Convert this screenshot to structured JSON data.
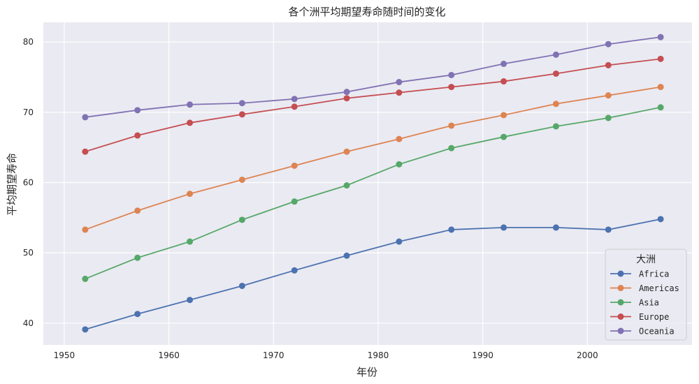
{
  "chart_data": {
    "type": "line",
    "title": "各个洲平均期望寿命随时间的变化",
    "xlabel": "年份",
    "ylabel": "平均期望寿命",
    "xlim": [
      1948,
      2010
    ],
    "ylim": [
      36.9,
      82.8
    ],
    "xticks": [
      1950,
      1960,
      1970,
      1980,
      1990,
      2000
    ],
    "yticks": [
      40,
      50,
      60,
      70,
      80
    ],
    "grid": true,
    "legend_title": "大洲",
    "legend_position": "lower-right",
    "x": [
      1952,
      1957,
      1962,
      1967,
      1972,
      1977,
      1982,
      1987,
      1992,
      1997,
      2002,
      2007
    ],
    "series": [
      {
        "name": "Africa",
        "color": "#4c72b0",
        "values": [
          39.1,
          41.3,
          43.3,
          45.3,
          47.5,
          49.6,
          51.6,
          53.3,
          53.6,
          53.6,
          53.3,
          54.8
        ]
      },
      {
        "name": "Americas",
        "color": "#dd8452",
        "values": [
          53.3,
          56.0,
          58.4,
          60.4,
          62.4,
          64.4,
          66.2,
          68.1,
          69.6,
          71.2,
          72.4,
          73.6
        ]
      },
      {
        "name": "Asia",
        "color": "#55a868",
        "values": [
          46.3,
          49.3,
          51.6,
          54.7,
          57.3,
          59.6,
          62.6,
          64.9,
          66.5,
          68.0,
          69.2,
          70.7
        ]
      },
      {
        "name": "Europe",
        "color": "#c44e52",
        "values": [
          64.4,
          66.7,
          68.5,
          69.7,
          70.8,
          72.0,
          72.8,
          73.6,
          74.4,
          75.5,
          76.7,
          77.6
        ]
      },
      {
        "name": "Oceania",
        "color": "#8172b3",
        "values": [
          69.3,
          70.3,
          71.1,
          71.3,
          71.9,
          72.9,
          74.3,
          75.3,
          76.9,
          78.2,
          79.7,
          80.7
        ]
      }
    ]
  }
}
